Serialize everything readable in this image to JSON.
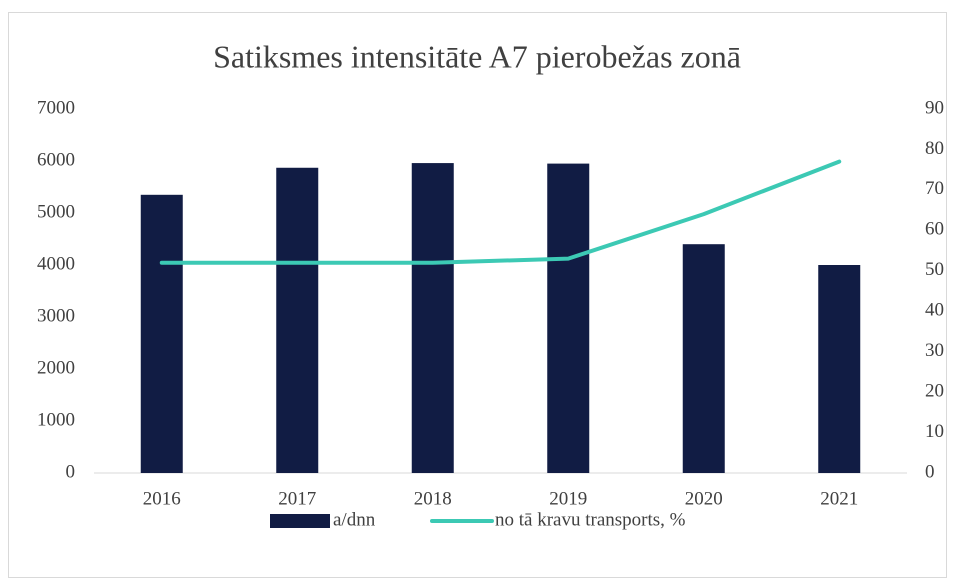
{
  "chart_data": {
    "type": "bar-line",
    "title": "Satiksmes intensitāte A7 pierobežas zonā",
    "categories": [
      "2016",
      "2017",
      "2018",
      "2019",
      "2020",
      "2021"
    ],
    "series": [
      {
        "name": "a/dnn",
        "type": "bar",
        "color": "#111c44",
        "values": [
          5350,
          5870,
          5960,
          5950,
          4400,
          4000
        ]
      },
      {
        "name": "no tā kravu transports, %",
        "type": "line",
        "axis": "y2",
        "color": "#3cc9b4",
        "values": [
          52,
          52,
          52,
          53,
          64,
          77
        ]
      }
    ],
    "ylim": [
      0,
      7000
    ],
    "yticks": [
      0,
      1000,
      2000,
      3000,
      4000,
      5000,
      6000,
      7000
    ],
    "y2lim": [
      0,
      90
    ],
    "y2ticks": [
      0,
      10,
      20,
      30,
      40,
      50,
      60,
      70,
      80,
      90
    ],
    "grid": false,
    "legend": "bottom"
  }
}
